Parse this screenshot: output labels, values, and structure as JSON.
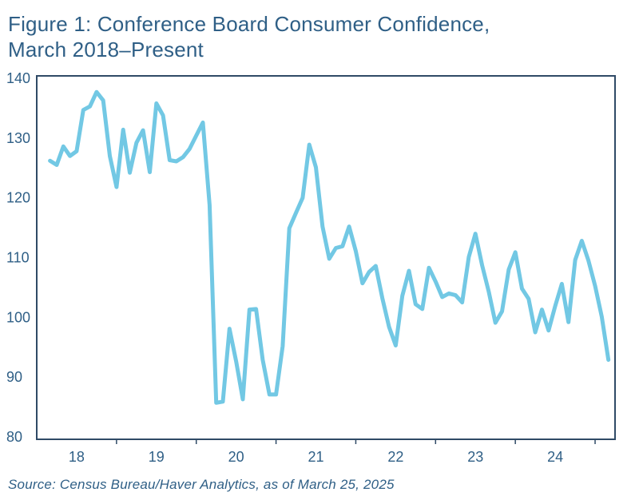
{
  "figure": {
    "title_line1": "Figure 1: Conference Board Consumer Confidence,",
    "title_line2": "March 2018–Present",
    "source": "Source: Census Bureau/Haver Analytics, as of March 25, 2025"
  },
  "colors": {
    "line": "#72c8e4",
    "frame": "#2f4a66",
    "text": "#2f5f86"
  },
  "chart_data": {
    "type": "line",
    "title": "Figure 1: Conference Board Consumer Confidence, March 2018–Present",
    "xlabel": "",
    "ylabel": "",
    "ylim": [
      80,
      140
    ],
    "xlim": [
      2018.0,
      2025.25
    ],
    "grid": false,
    "yticks": [
      80,
      90,
      100,
      110,
      120,
      130,
      140
    ],
    "xticks": [
      {
        "label": "18",
        "year": 2018
      },
      {
        "label": "19",
        "year": 2019
      },
      {
        "label": "20",
        "year": 2020
      },
      {
        "label": "21",
        "year": 2021
      },
      {
        "label": "22",
        "year": 2022
      },
      {
        "label": "23",
        "year": 2023
      },
      {
        "label": "24",
        "year": 2024
      }
    ],
    "series": [
      {
        "x": [
          "2018-03",
          "2018-04",
          "2018-05",
          "2018-06",
          "2018-07",
          "2018-08",
          "2018-09",
          "2018-10",
          "2018-11",
          "2018-12",
          "2019-01",
          "2019-02",
          "2019-03",
          "2019-04",
          "2019-05",
          "2019-06",
          "2019-07",
          "2019-08",
          "2019-09",
          "2019-10",
          "2019-11",
          "2019-12",
          "2020-01",
          "2020-02",
          "2020-03",
          "2020-04",
          "2020-05",
          "2020-06",
          "2020-07",
          "2020-08",
          "2020-09",
          "2020-10",
          "2020-11",
          "2020-12",
          "2021-01",
          "2021-02",
          "2021-03",
          "2021-04",
          "2021-05",
          "2021-06",
          "2021-07",
          "2021-08",
          "2021-09",
          "2021-10",
          "2021-11",
          "2021-12",
          "2022-01",
          "2022-02",
          "2022-03",
          "2022-04",
          "2022-05",
          "2022-06",
          "2022-07",
          "2022-08",
          "2022-09",
          "2022-10",
          "2022-11",
          "2022-12",
          "2023-01",
          "2023-02",
          "2023-03",
          "2023-04",
          "2023-05",
          "2023-06",
          "2023-07",
          "2023-08",
          "2023-09",
          "2023-10",
          "2023-11",
          "2023-12",
          "2024-01",
          "2024-02",
          "2024-03",
          "2024-04",
          "2024-05",
          "2024-06",
          "2024-07",
          "2024-08",
          "2024-09",
          "2024-10",
          "2024-11",
          "2024-12",
          "2025-01",
          "2025-02",
          "2025-03"
        ],
        "values": [
          126.2,
          125.5,
          128.6,
          127.0,
          127.8,
          134.7,
          135.3,
          137.7,
          136.3,
          127.0,
          121.8,
          131.4,
          124.2,
          129.2,
          131.3,
          124.3,
          135.8,
          133.8,
          126.3,
          126.1,
          126.8,
          128.2,
          130.4,
          132.6,
          118.8,
          85.7,
          85.9,
          98.1,
          92.6,
          86.3,
          101.3,
          101.4,
          92.9,
          87.1,
          87.1,
          95.2,
          114.9,
          117.5,
          120.0,
          128.9,
          125.1,
          115.2,
          109.8,
          111.6,
          111.9,
          115.2,
          111.1,
          105.7,
          107.6,
          108.6,
          103.2,
          98.4,
          95.3,
          103.6,
          107.8,
          102.2,
          101.4,
          108.3,
          106.0,
          103.4,
          104.0,
          103.7,
          102.5,
          110.1,
          114.0,
          108.7,
          104.3,
          99.1,
          101.0,
          108.0,
          110.9,
          104.8,
          103.1,
          97.5,
          101.3,
          97.8,
          101.9,
          105.6,
          99.2,
          109.6,
          112.8,
          109.5,
          105.3,
          100.1,
          92.9
        ]
      }
    ]
  }
}
